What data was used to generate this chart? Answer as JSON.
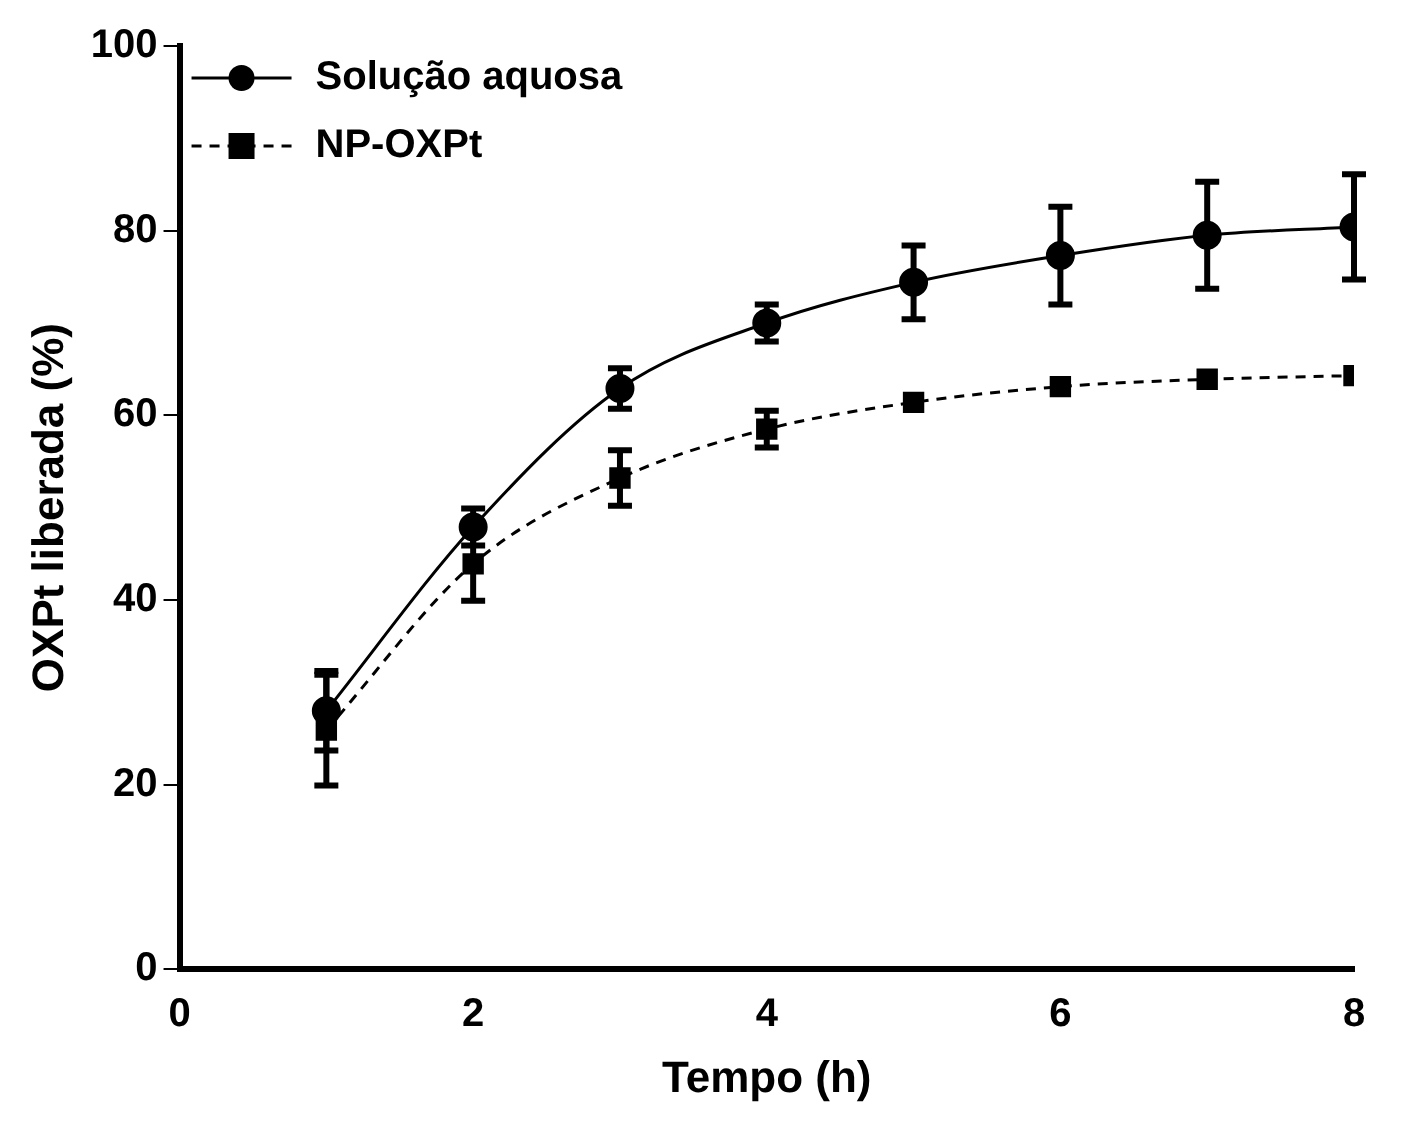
{
  "chart_data": {
    "type": "line",
    "xlabel": "Tempo (h)",
    "ylabel": "OXPt liberada (%)",
    "x": [
      1,
      2,
      3,
      4,
      5,
      6,
      7,
      8
    ],
    "xlim": [
      0,
      8
    ],
    "xticks": [
      0,
      2,
      4,
      6,
      8
    ],
    "ylim": [
      0,
      100
    ],
    "yticks": [
      0,
      20,
      40,
      60,
      80,
      100
    ],
    "grid": false,
    "legend": "top left",
    "series": [
      {
        "name": "Solução aquosa",
        "color": "#000000",
        "marker": "circle",
        "line_style": "solid",
        "values": [
          28,
          47.9,
          62.9,
          70,
          74.4,
          77.3,
          79.5,
          80.4
        ],
        "errors": [
          4.3,
          2,
          2.2,
          2,
          4,
          5.3,
          5.8,
          5.7
        ]
      },
      {
        "name": "NP-OXPt",
        "color": "#000000",
        "marker": "square",
        "line_style": "dashed",
        "values": [
          25.9,
          43.9,
          53.2,
          58.5,
          61.4,
          63.1,
          63.9,
          64.3
        ],
        "errors": [
          6,
          4,
          3,
          2,
          null,
          null,
          null,
          null
        ]
      }
    ]
  }
}
